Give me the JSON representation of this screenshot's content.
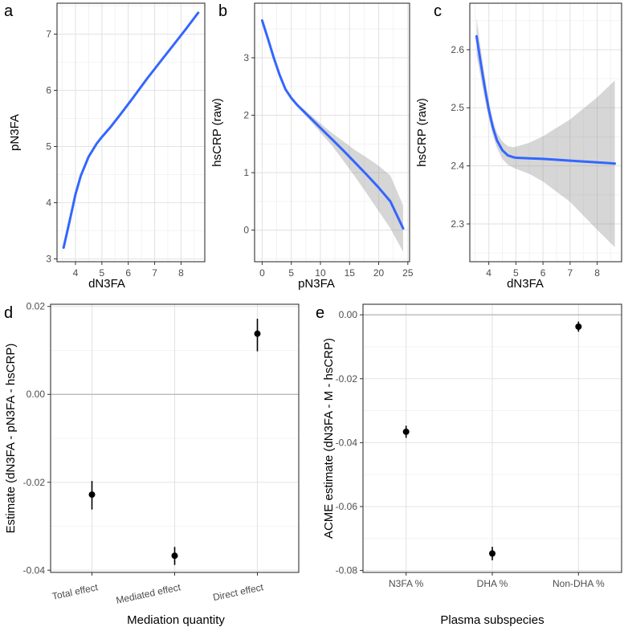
{
  "chart_data": [
    {
      "id": "a",
      "panel_label": "a",
      "type": "line",
      "xlabel": "dN3FA",
      "ylabel": "pN3FA",
      "xlim": [
        3.3,
        8.9
      ],
      "ylim": [
        2.95,
        7.55
      ],
      "xticks": [
        4,
        5,
        6,
        7,
        8
      ],
      "yticks": [
        3,
        4,
        5,
        6,
        7
      ],
      "grid": true,
      "series": [
        {
          "name": "smooth fit",
          "color": "#3366ff",
          "x": [
            3.55,
            3.8,
            4.0,
            4.2,
            4.5,
            4.8,
            5.0,
            5.3,
            5.7,
            6.2,
            6.7,
            7.2,
            7.7,
            8.2,
            8.65
          ],
          "y": [
            3.2,
            3.72,
            4.15,
            4.48,
            4.82,
            5.05,
            5.17,
            5.33,
            5.57,
            5.88,
            6.2,
            6.5,
            6.8,
            7.1,
            7.38
          ]
        }
      ]
    },
    {
      "id": "b",
      "panel_label": "b",
      "type": "line",
      "xlabel": "pN3FA",
      "ylabel": "hsCRP (raw)",
      "xlim": [
        -1.3,
        25.3
      ],
      "ylim": [
        -0.55,
        3.95
      ],
      "xticks": [
        0,
        5,
        10,
        15,
        20,
        25
      ],
      "yticks": [
        0,
        1,
        2,
        3
      ],
      "grid": true,
      "series": [
        {
          "name": "smooth fit",
          "color": "#3366ff",
          "x": [
            0,
            1,
            2,
            3,
            4,
            5,
            6,
            8,
            10,
            12,
            14,
            16,
            18,
            20,
            22,
            24.2
          ],
          "y": [
            3.65,
            3.33,
            3.0,
            2.7,
            2.45,
            2.3,
            2.18,
            1.98,
            1.78,
            1.58,
            1.38,
            1.17,
            0.96,
            0.74,
            0.5,
            0.03
          ]
        }
      ],
      "confidence_band": {
        "x": [
          0,
          2,
          4,
          6,
          8,
          10,
          12,
          14,
          16,
          18,
          20,
          22,
          24.2
        ],
        "lower": [
          3.62,
          2.98,
          2.44,
          2.15,
          1.93,
          1.7,
          1.47,
          1.2,
          0.92,
          0.63,
          0.33,
          0.03,
          -0.38
        ],
        "upper": [
          3.68,
          3.02,
          2.46,
          2.21,
          2.03,
          1.86,
          1.69,
          1.54,
          1.39,
          1.26,
          1.12,
          0.95,
          0.43
        ]
      }
    },
    {
      "id": "c",
      "panel_label": "c",
      "type": "line",
      "xlabel": "dN3FA",
      "ylabel": "hsCRP (raw)",
      "xlim": [
        3.3,
        8.9
      ],
      "ylim": [
        2.235,
        2.68
      ],
      "xticks": [
        4,
        5,
        6,
        7,
        8
      ],
      "yticks": [
        2.3,
        2.4,
        2.5,
        2.6
      ],
      "grid": true,
      "series": [
        {
          "name": "smooth fit",
          "color": "#3366ff",
          "x": [
            3.55,
            3.7,
            3.85,
            4.0,
            4.15,
            4.3,
            4.5,
            4.7,
            4.9,
            5.0,
            5.5,
            6.0,
            7.0,
            8.0,
            8.65
          ],
          "y": [
            2.623,
            2.578,
            2.535,
            2.497,
            2.466,
            2.444,
            2.427,
            2.418,
            2.415,
            2.414,
            2.413,
            2.412,
            2.409,
            2.406,
            2.404
          ]
        }
      ],
      "confidence_band": {
        "x": [
          3.55,
          3.7,
          3.85,
          4.0,
          4.15,
          4.3,
          4.5,
          4.7,
          4.9,
          5.0,
          5.5,
          6.0,
          7.0,
          8.0,
          8.65
        ],
        "lower": [
          2.59,
          2.553,
          2.515,
          2.482,
          2.453,
          2.431,
          2.412,
          2.402,
          2.397,
          2.395,
          2.386,
          2.373,
          2.338,
          2.29,
          2.26
        ],
        "upper": [
          2.655,
          2.603,
          2.555,
          2.512,
          2.479,
          2.457,
          2.442,
          2.434,
          2.432,
          2.433,
          2.44,
          2.451,
          2.48,
          2.518,
          2.547
        ]
      }
    },
    {
      "id": "d",
      "panel_label": "d",
      "type": "scatter",
      "xlabel": "Mediation quantity",
      "ylabel": "Estimate (dN3FA - pN3FA - hsCRP)",
      "ylim": [
        -0.0405,
        0.0205
      ],
      "yticks": [
        -0.04,
        -0.02,
        0.0,
        0.02
      ],
      "ytick_labels": [
        "-0.04",
        "-0.02",
        "0.00",
        "0.02"
      ],
      "reference_line": 0,
      "grid": true,
      "categories": [
        "Total effect",
        "Mediated effect",
        "Direct effect"
      ],
      "values": [
        -0.0228,
        -0.0367,
        0.0138
      ],
      "ci_lower": [
        -0.0262,
        -0.0388,
        0.0098
      ],
      "ci_upper": [
        -0.0197,
        -0.0347,
        0.0172
      ]
    },
    {
      "id": "e",
      "panel_label": "e",
      "type": "scatter",
      "xlabel": "Plasma subspecies",
      "ylabel": "ACME estimate (dN3FA - M - hsCRP)",
      "ylim": [
        -0.0806,
        0.0033
      ],
      "yticks": [
        -0.08,
        -0.06,
        -0.04,
        -0.02,
        0.0
      ],
      "ytick_labels": [
        "-0.08",
        "-0.06",
        "-0.04",
        "-0.02",
        "0.00"
      ],
      "reference_line": 0,
      "grid": true,
      "categories": [
        "N3FA %",
        "DHA %",
        "Non-DHA %"
      ],
      "values": [
        -0.0366,
        -0.0747,
        -0.0037
      ],
      "ci_lower": [
        -0.0385,
        -0.0768,
        -0.0053
      ],
      "ci_upper": [
        -0.0347,
        -0.0726,
        -0.0021
      ]
    }
  ]
}
